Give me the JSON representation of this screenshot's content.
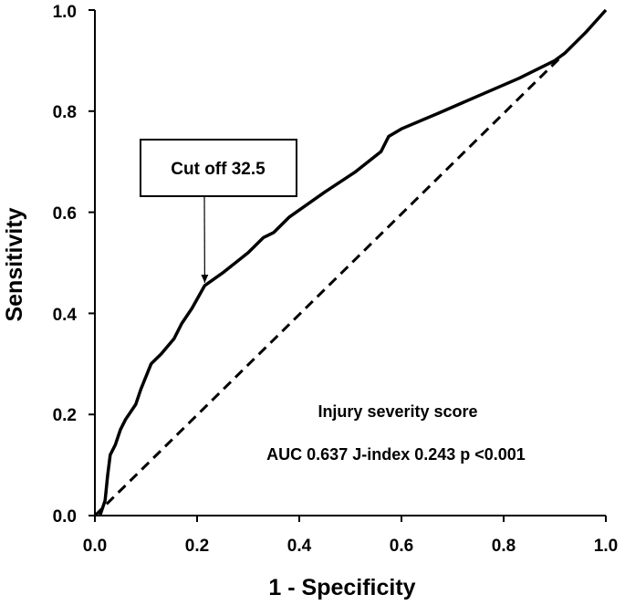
{
  "chart_data": {
    "type": "line",
    "xlabel": "1 - Specificity",
    "ylabel": "Sensitivity",
    "xlim": [
      0,
      1
    ],
    "ylim": [
      0,
      1
    ],
    "x_ticks": [
      "0.0",
      "0.2",
      "0.4",
      "0.6",
      "0.8",
      "1.0"
    ],
    "y_ticks": [
      "0.0",
      "0.2",
      "0.4",
      "0.6",
      "0.8",
      "1.0"
    ],
    "grid": false,
    "series": [
      {
        "name": "ROC curve",
        "style": "solid",
        "points": [
          [
            0.01,
            0.0
          ],
          [
            0.02,
            0.03
          ],
          [
            0.025,
            0.08
          ],
          [
            0.03,
            0.12
          ],
          [
            0.04,
            0.14
          ],
          [
            0.05,
            0.17
          ],
          [
            0.06,
            0.19
          ],
          [
            0.08,
            0.22
          ],
          [
            0.09,
            0.25
          ],
          [
            0.11,
            0.3
          ],
          [
            0.13,
            0.32
          ],
          [
            0.155,
            0.35
          ],
          [
            0.17,
            0.38
          ],
          [
            0.19,
            0.41
          ],
          [
            0.215,
            0.455
          ],
          [
            0.25,
            0.48
          ],
          [
            0.3,
            0.52
          ],
          [
            0.33,
            0.55
          ],
          [
            0.35,
            0.56
          ],
          [
            0.38,
            0.59
          ],
          [
            0.45,
            0.64
          ],
          [
            0.51,
            0.68
          ],
          [
            0.56,
            0.72
          ],
          [
            0.575,
            0.75
          ],
          [
            0.6,
            0.765
          ],
          [
            0.67,
            0.795
          ],
          [
            0.75,
            0.83
          ],
          [
            0.83,
            0.865
          ],
          [
            0.9,
            0.9
          ],
          [
            0.92,
            0.915
          ],
          [
            0.96,
            0.955
          ],
          [
            1.0,
            1.0
          ]
        ]
      },
      {
        "name": "Reference line",
        "style": "dashed",
        "points": [
          [
            0.0,
            0.0
          ],
          [
            0.92,
            0.915
          ]
        ]
      }
    ],
    "annotations": {
      "callout": {
        "label": "Cut off 32.5",
        "target": [
          0.215,
          0.455
        ]
      },
      "score_title": "Injury severity score",
      "stats": "AUC 0.637 J-index 0.243 p <0.001"
    }
  }
}
